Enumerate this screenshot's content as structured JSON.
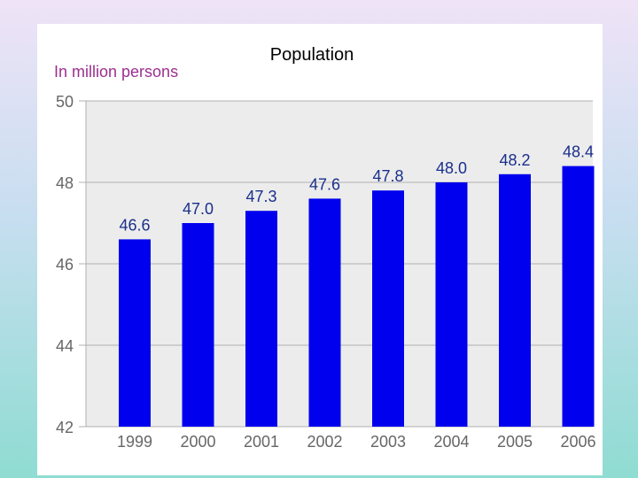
{
  "chart_data": {
    "type": "bar",
    "title": "Population",
    "ylabel": "In million persons",
    "xlabel": "",
    "categories": [
      "1999",
      "2000",
      "2001",
      "2002",
      "2003",
      "2004",
      "2005",
      "2006"
    ],
    "values": [
      46.6,
      47.0,
      47.3,
      47.6,
      47.8,
      48.0,
      48.2,
      48.4
    ],
    "value_labels": [
      "46.6",
      "47.0",
      "47.3",
      "47.6",
      "47.8",
      "48.0",
      "48.2",
      "48.4"
    ],
    "yticks": [
      42,
      44,
      46,
      48,
      50
    ],
    "ylim": [
      42,
      50
    ],
    "grid": true,
    "bar_color": "#0000ee",
    "title_color": "#000000",
    "ylabel_color": "#9b2f8f",
    "axis_text_color": "#666666",
    "value_label_color": "#1a2f8c",
    "plot_background": "#ececec",
    "grid_color": "#b0b0b0"
  }
}
